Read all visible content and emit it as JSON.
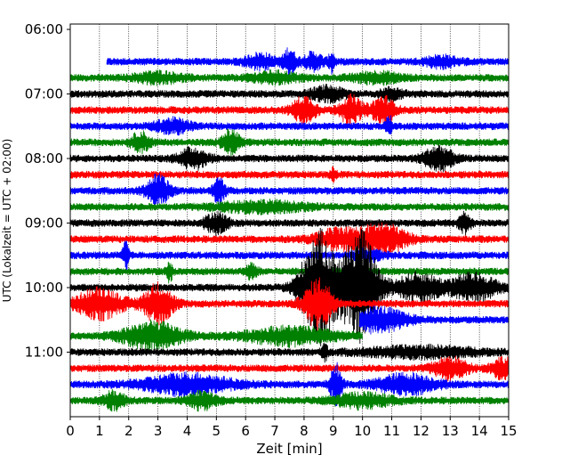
{
  "chart_data": {
    "type": "line",
    "title": "",
    "xlabel": "Zeit  [min]",
    "ylabel": "UTC (Lokalzeit = UTC + 02:00)",
    "xlim": [
      0,
      15
    ],
    "ylim_time": [
      "05:55",
      "12:00"
    ],
    "x_ticks": [
      "0",
      "1",
      "2",
      "3",
      "4",
      "5",
      "6",
      "7",
      "8",
      "9",
      "10",
      "11",
      "12",
      "13",
      "14",
      "15"
    ],
    "y_ticks": [
      "06:00",
      "07:00",
      "08:00",
      "09:00",
      "10:00",
      "11:00"
    ],
    "grid": "vertical dotted at each minute",
    "colors": [
      "#0000ff",
      "#008000",
      "#000000",
      "#ff0000"
    ],
    "series": [
      {
        "start": "06:30",
        "color": "#0000ff",
        "x_start": 1.25,
        "x_end": 15,
        "bursts": [
          {
            "x": 6.5,
            "a": 0.45,
            "w": 0.5
          },
          {
            "x": 7.5,
            "a": 0.85,
            "w": 0.2
          },
          {
            "x": 8.3,
            "a": 0.5,
            "w": 0.35
          },
          {
            "x": 8.95,
            "a": 0.6,
            "w": 0.1
          },
          {
            "x": 12.7,
            "a": 0.3,
            "w": 0.6
          }
        ]
      },
      {
        "start": "06:45",
        "color": "#008000",
        "x_start": 0,
        "x_end": 15,
        "bursts": [
          {
            "x": 3.0,
            "a": 0.3,
            "w": 0.8
          },
          {
            "x": 7.0,
            "a": 0.3,
            "w": 0.8
          },
          {
            "x": 10.5,
            "a": 0.3,
            "w": 0.8
          }
        ]
      },
      {
        "start": "07:00",
        "color": "#000000",
        "x_start": 0,
        "x_end": 15,
        "bursts": [
          {
            "x": 8.8,
            "a": 0.4,
            "w": 0.6
          },
          {
            "x": 11.0,
            "a": 0.3,
            "w": 0.4
          }
        ]
      },
      {
        "start": "07:15",
        "color": "#ff0000",
        "x_start": 0,
        "x_end": 15,
        "bursts": [
          {
            "x": 8.0,
            "a": 0.8,
            "w": 0.4
          },
          {
            "x": 9.6,
            "a": 0.8,
            "w": 0.4
          },
          {
            "x": 10.7,
            "a": 0.8,
            "w": 0.4
          }
        ]
      },
      {
        "start": "07:30",
        "color": "#0000ff",
        "x_start": 0,
        "x_end": 15,
        "bursts": [
          {
            "x": 3.5,
            "a": 0.4,
            "w": 0.6
          },
          {
            "x": 10.9,
            "a": 0.7,
            "w": 0.1
          }
        ]
      },
      {
        "start": "07:45",
        "color": "#008000",
        "x_start": 0,
        "x_end": 15,
        "bursts": [
          {
            "x": 2.4,
            "a": 0.6,
            "w": 0.3
          },
          {
            "x": 5.5,
            "a": 0.7,
            "w": 0.3
          }
        ]
      },
      {
        "start": "08:00",
        "color": "#000000",
        "x_start": 0,
        "x_end": 15,
        "bursts": [
          {
            "x": 4.2,
            "a": 0.6,
            "w": 0.5
          },
          {
            "x": 12.6,
            "a": 0.7,
            "w": 0.5
          }
        ]
      },
      {
        "start": "08:15",
        "color": "#ff0000",
        "x_start": 0,
        "x_end": 15,
        "bursts": [
          {
            "x": 9.0,
            "a": 0.3,
            "w": 0.1
          }
        ]
      },
      {
        "start": "08:30",
        "color": "#0000ff",
        "x_start": 0,
        "x_end": 15,
        "bursts": [
          {
            "x": 3.0,
            "a": 0.9,
            "w": 0.4
          },
          {
            "x": 5.1,
            "a": 0.8,
            "w": 0.2
          }
        ]
      },
      {
        "start": "08:45",
        "color": "#008000",
        "x_start": 0,
        "x_end": 15,
        "bursts": [
          {
            "x": 6.5,
            "a": 0.3,
            "w": 1.5
          }
        ]
      },
      {
        "start": "09:00",
        "color": "#000000",
        "x_start": 0,
        "x_end": 15,
        "bursts": [
          {
            "x": 5.0,
            "a": 0.6,
            "w": 0.4
          },
          {
            "x": 13.5,
            "a": 0.6,
            "w": 0.2
          }
        ]
      },
      {
        "start": "09:15",
        "color": "#ff0000",
        "x_start": 0,
        "x_end": 15,
        "bursts": [
          {
            "x": 9.2,
            "a": 0.6,
            "w": 0.8
          },
          {
            "x": 10.7,
            "a": 0.9,
            "w": 0.8
          }
        ]
      },
      {
        "start": "09:30",
        "color": "#0000ff",
        "x_start": 0,
        "x_end": 15,
        "bursts": [
          {
            "x": 1.9,
            "a": 0.9,
            "w": 0.1
          },
          {
            "x": 10.2,
            "a": 0.3,
            "w": 0.5
          }
        ]
      },
      {
        "start": "09:45",
        "color": "#008000",
        "x_start": 0,
        "x_end": 15,
        "bursts": [
          {
            "x": 3.4,
            "a": 0.6,
            "w": 0.1
          },
          {
            "x": 6.2,
            "a": 0.4,
            "w": 0.2
          }
        ]
      },
      {
        "start": "10:00",
        "color": "#000000",
        "x_start": 0,
        "x_end": 15,
        "bursts": [
          {
            "x": 8.5,
            "a": 3.5,
            "w": 0.6
          },
          {
            "x": 9.9,
            "a": 3.5,
            "w": 0.6
          },
          {
            "x": 11.9,
            "a": 0.8,
            "w": 0.8
          },
          {
            "x": 13.8,
            "a": 0.8,
            "w": 0.8
          }
        ]
      },
      {
        "start": "10:15",
        "color": "#ff0000",
        "x_start": 0,
        "x_end": 15,
        "bursts": [
          {
            "x": 1.0,
            "a": 0.9,
            "w": 0.8
          },
          {
            "x": 3.0,
            "a": 1.2,
            "w": 0.5
          },
          {
            "x": 8.5,
            "a": 1.5,
            "w": 0.5
          }
        ]
      },
      {
        "start": "10:30",
        "color": "#0000ff",
        "x_start": 9.9,
        "x_end": 15,
        "bursts": [
          {
            "x": 10.5,
            "a": 0.7,
            "w": 1.0
          }
        ]
      },
      {
        "start": "10:45",
        "color": "#008000",
        "x_start": 0,
        "x_end": 10,
        "bursts": [
          {
            "x": 2.8,
            "a": 0.8,
            "w": 1.0
          },
          {
            "x": 7.5,
            "a": 0.5,
            "w": 1.5
          }
        ]
      },
      {
        "start": "11:00",
        "color": "#000000",
        "x_start": 0,
        "x_end": 15,
        "bursts": [
          {
            "x": 8.7,
            "a": 0.5,
            "w": 0.1
          },
          {
            "x": 12.0,
            "a": 0.3,
            "w": 2.0
          }
        ]
      },
      {
        "start": "11:15",
        "color": "#ff0000",
        "x_start": 0,
        "x_end": 15,
        "bursts": [
          {
            "x": 13.0,
            "a": 0.6,
            "w": 0.6
          },
          {
            "x": 14.8,
            "a": 0.6,
            "w": 0.4
          }
        ]
      },
      {
        "start": "11:30",
        "color": "#0000ff",
        "x_start": 0,
        "x_end": 15,
        "bursts": [
          {
            "x": 4.0,
            "a": 0.6,
            "w": 1.5
          },
          {
            "x": 9.1,
            "a": 1.2,
            "w": 0.2
          },
          {
            "x": 11.5,
            "a": 0.6,
            "w": 1.0
          }
        ]
      },
      {
        "start": "11:45",
        "color": "#008000",
        "x_start": 0,
        "x_end": 15,
        "bursts": [
          {
            "x": 1.5,
            "a": 0.5,
            "w": 0.4
          },
          {
            "x": 4.5,
            "a": 0.5,
            "w": 0.5
          },
          {
            "x": 10.0,
            "a": 0.4,
            "w": 1.0
          }
        ]
      }
    ]
  }
}
